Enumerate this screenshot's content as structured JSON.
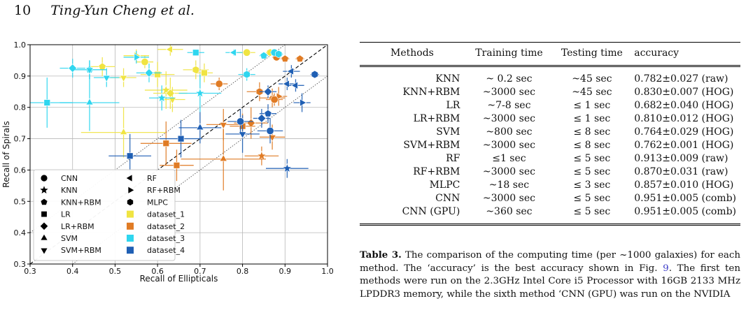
{
  "header": {
    "page_number": "10",
    "authors": "Ting-Yun Cheng et al."
  },
  "figure": {
    "chart_data": {
      "type": "scatter",
      "xlabel": "Recall of Ellipticals",
      "ylabel": "Recall of Spirals",
      "xlim": [
        0.3,
        1.0
      ],
      "ylim": [
        0.3,
        1.0
      ],
      "xticks": [
        "0.3",
        "0.4",
        "0.5",
        "0.6",
        "0.7",
        "0.8",
        "0.9",
        "1.0"
      ],
      "yticks": [
        "0.3",
        "0.4",
        "0.5",
        "0.6",
        "0.7",
        "0.8",
        "0.9",
        "1.0"
      ],
      "grid": true,
      "legend_position": "lower-left",
      "colors": {
        "dataset_1": "#f0e442",
        "dataset_2": "#e07b24",
        "dataset_3": "#2fd6ef",
        "dataset_4": "#1f5fb4"
      },
      "legend": {
        "methods": [
          {
            "label": "CNN",
            "marker": "circle"
          },
          {
            "label": "KNN",
            "marker": "star"
          },
          {
            "label": "KNN+RBM",
            "marker": "pentagon"
          },
          {
            "label": "LR",
            "marker": "square"
          },
          {
            "label": "LR+RBM",
            "marker": "diamond"
          },
          {
            "label": "SVM",
            "marker": "triangle-up"
          },
          {
            "label": "SVM+RBM",
            "marker": "triangle-down"
          },
          {
            "label": "RF",
            "marker": "triangle-left"
          },
          {
            "label": "RF+RBM",
            "marker": "triangle-right"
          },
          {
            "label": "MLPC",
            "marker": "hexagon"
          }
        ],
        "datasets": [
          "dataset_1",
          "dataset_2",
          "dataset_3",
          "dataset_4"
        ]
      },
      "points": [
        {
          "ds": "dataset_1",
          "m": "circle",
          "x": 0.81,
          "y": 0.975,
          "ex": 0.02,
          "ey": 0.01
        },
        {
          "ds": "dataset_1",
          "m": "star",
          "x": 0.62,
          "y": 0.855,
          "ex": 0.05,
          "ey": 0.06
        },
        {
          "ds": "dataset_1",
          "m": "pentagon",
          "x": 0.47,
          "y": 0.93,
          "ex": 0.03,
          "ey": 0.03
        },
        {
          "ds": "dataset_1",
          "m": "square",
          "x": 0.6,
          "y": 0.905,
          "ex": 0.04,
          "ey": 0.04
        },
        {
          "ds": "dataset_1",
          "m": "diamond",
          "x": 0.63,
          "y": 0.845,
          "ex": 0.04,
          "ey": 0.05
        },
        {
          "ds": "dataset_1",
          "m": "triangle-up",
          "x": 0.52,
          "y": 0.72,
          "ex": 0.1,
          "ey": 0.08
        },
        {
          "ds": "dataset_1",
          "m": "triangle-down",
          "x": 0.52,
          "y": 0.895,
          "ex": 0.03,
          "ey": 0.03
        },
        {
          "ds": "dataset_1",
          "m": "triangle-left",
          "x": 0.63,
          "y": 0.985,
          "ex": 0.03,
          "ey": 0.02
        },
        {
          "ds": "dataset_1",
          "m": "triangle-right",
          "x": 0.55,
          "y": 0.965,
          "ex": 0.03,
          "ey": 0.02
        },
        {
          "ds": "dataset_1",
          "m": "hexagon",
          "x": 0.69,
          "y": 0.92,
          "ex": 0.03,
          "ey": 0.03
        },
        {
          "ds": "dataset_1",
          "m": "circle",
          "x": 0.57,
          "y": 0.945,
          "ex": 0.02,
          "ey": 0.02
        },
        {
          "ds": "dataset_1",
          "m": "triangle-down",
          "x": 0.635,
          "y": 0.825,
          "ex": 0.03,
          "ey": 0.04
        },
        {
          "ds": "dataset_1",
          "m": "hexagon",
          "x": 0.865,
          "y": 0.975,
          "ex": 0.01,
          "ey": 0.01
        },
        {
          "ds": "dataset_1",
          "m": "square",
          "x": 0.71,
          "y": 0.91,
          "ex": 0.02,
          "ey": 0.03
        },
        {
          "ds": "dataset_2",
          "m": "circle",
          "x": 0.88,
          "y": 0.96,
          "ex": 0.01,
          "ey": 0.01
        },
        {
          "ds": "dataset_2",
          "m": "star",
          "x": 0.845,
          "y": 0.645,
          "ex": 0.04,
          "ey": 0.03
        },
        {
          "ds": "dataset_2",
          "m": "pentagon",
          "x": 0.9,
          "y": 0.955,
          "ex": 0.01,
          "ey": 0.01
        },
        {
          "ds": "dataset_2",
          "m": "square",
          "x": 0.62,
          "y": 0.685,
          "ex": 0.06,
          "ey": 0.07
        },
        {
          "ds": "dataset_2",
          "m": "diamond",
          "x": 0.82,
          "y": 0.75,
          "ex": 0.04,
          "ey": 0.05
        },
        {
          "ds": "dataset_2",
          "m": "triangle-up",
          "x": 0.755,
          "y": 0.635,
          "ex": 0.1,
          "ey": 0.1
        },
        {
          "ds": "dataset_2",
          "m": "triangle-down",
          "x": 0.755,
          "y": 0.745,
          "ex": 0.04,
          "ey": 0.05
        },
        {
          "ds": "dataset_2",
          "m": "triangle-left",
          "x": 0.87,
          "y": 0.83,
          "ex": 0.03,
          "ey": 0.03
        },
        {
          "ds": "dataset_2",
          "m": "triangle-right",
          "x": 0.885,
          "y": 0.835,
          "ex": 0.02,
          "ey": 0.03
        },
        {
          "ds": "dataset_2",
          "m": "hexagon",
          "x": 0.84,
          "y": 0.85,
          "ex": 0.03,
          "ey": 0.03
        },
        {
          "ds": "dataset_2",
          "m": "square",
          "x": 0.645,
          "y": 0.615,
          "ex": 0.04,
          "ey": 0.05
        },
        {
          "ds": "dataset_2",
          "m": "circle",
          "x": 0.875,
          "y": 0.825,
          "ex": 0.02,
          "ey": 0.02
        },
        {
          "ds": "dataset_2",
          "m": "pentagon",
          "x": 0.935,
          "y": 0.955,
          "ex": 0.01,
          "ey": 0.01
        },
        {
          "ds": "dataset_2",
          "m": "circle",
          "x": 0.745,
          "y": 0.875,
          "ex": 0.02,
          "ey": 0.02
        },
        {
          "ds": "dataset_2",
          "m": "triangle-down",
          "x": 0.87,
          "y": 0.705,
          "ex": 0.03,
          "ey": 0.04
        },
        {
          "ds": "dataset_2",
          "m": "square",
          "x": 0.8,
          "y": 0.74,
          "ex": 0.03,
          "ey": 0.04
        },
        {
          "ds": "dataset_3",
          "m": "circle",
          "x": 0.875,
          "y": 0.975,
          "ex": 0.01,
          "ey": 0.01
        },
        {
          "ds": "dataset_3",
          "m": "star",
          "x": 0.7,
          "y": 0.845,
          "ex": 0.05,
          "ey": 0.06
        },
        {
          "ds": "dataset_3",
          "m": "pentagon",
          "x": 0.44,
          "y": 0.92,
          "ex": 0.04,
          "ey": 0.03
        },
        {
          "ds": "dataset_3",
          "m": "square",
          "x": 0.34,
          "y": 0.815,
          "ex": 0.06,
          "ey": 0.08
        },
        {
          "ds": "dataset_3",
          "m": "diamond",
          "x": 0.4,
          "y": 0.925,
          "ex": 0.03,
          "ey": 0.03
        },
        {
          "ds": "dataset_3",
          "m": "triangle-up",
          "x": 0.44,
          "y": 0.815,
          "ex": 0.07,
          "ey": 0.09
        },
        {
          "ds": "dataset_3",
          "m": "triangle-down",
          "x": 0.44,
          "y": 0.92,
          "ex": 0.04,
          "ey": 0.03
        },
        {
          "ds": "dataset_3",
          "m": "triangle-left",
          "x": 0.78,
          "y": 0.975,
          "ex": 0.02,
          "ey": 0.01
        },
        {
          "ds": "dataset_3",
          "m": "triangle-right",
          "x": 0.55,
          "y": 0.96,
          "ex": 0.03,
          "ey": 0.02
        },
        {
          "ds": "dataset_3",
          "m": "hexagon",
          "x": 0.81,
          "y": 0.905,
          "ex": 0.02,
          "ey": 0.02
        },
        {
          "ds": "dataset_3",
          "m": "square",
          "x": 0.69,
          "y": 0.975,
          "ex": 0.02,
          "ey": 0.01
        },
        {
          "ds": "dataset_3",
          "m": "diamond",
          "x": 0.58,
          "y": 0.91,
          "ex": 0.03,
          "ey": 0.03
        },
        {
          "ds": "dataset_3",
          "m": "star",
          "x": 0.61,
          "y": 0.83,
          "ex": 0.03,
          "ey": 0.04
        },
        {
          "ds": "dataset_3",
          "m": "triangle-down",
          "x": 0.48,
          "y": 0.895,
          "ex": 0.03,
          "ey": 0.03
        },
        {
          "ds": "dataset_3",
          "m": "pentagon",
          "x": 0.85,
          "y": 0.965,
          "ex": 0.01,
          "ey": 0.01
        },
        {
          "ds": "dataset_3",
          "m": "hexagon",
          "x": 0.885,
          "y": 0.97,
          "ex": 0.01,
          "ey": 0.01
        },
        {
          "ds": "dataset_4",
          "m": "circle",
          "x": 0.865,
          "y": 0.725,
          "ex": 0.03,
          "ey": 0.04
        },
        {
          "ds": "dataset_4",
          "m": "star",
          "x": 0.905,
          "y": 0.605,
          "ex": 0.05,
          "ey": 0.03
        },
        {
          "ds": "dataset_4",
          "m": "pentagon",
          "x": 0.86,
          "y": 0.78,
          "ex": 0.02,
          "ey": 0.03
        },
        {
          "ds": "dataset_4",
          "m": "square",
          "x": 0.535,
          "y": 0.645,
          "ex": 0.05,
          "ey": 0.07
        },
        {
          "ds": "dataset_4",
          "m": "diamond",
          "x": 0.845,
          "y": 0.765,
          "ex": 0.02,
          "ey": 0.03
        },
        {
          "ds": "dataset_4",
          "m": "triangle-up",
          "x": 0.7,
          "y": 0.735,
          "ex": 0.05,
          "ey": 0.05
        },
        {
          "ds": "dataset_4",
          "m": "triangle-down",
          "x": 0.8,
          "y": 0.715,
          "ex": 0.04,
          "ey": 0.06
        },
        {
          "ds": "dataset_4",
          "m": "triangle-left",
          "x": 0.915,
          "y": 0.915,
          "ex": 0.02,
          "ey": 0.02
        },
        {
          "ds": "dataset_4",
          "m": "triangle-right",
          "x": 0.94,
          "y": 0.815,
          "ex": 0.02,
          "ey": 0.03
        },
        {
          "ds": "dataset_4",
          "m": "hexagon",
          "x": 0.97,
          "y": 0.905,
          "ex": 0.01,
          "ey": 0.01
        },
        {
          "ds": "dataset_4",
          "m": "square",
          "x": 0.655,
          "y": 0.7,
          "ex": 0.05,
          "ey": 0.06
        },
        {
          "ds": "dataset_4",
          "m": "circle",
          "x": 0.795,
          "y": 0.755,
          "ex": 0.03,
          "ey": 0.04
        },
        {
          "ds": "dataset_4",
          "m": "triangle-left",
          "x": 0.905,
          "y": 0.875,
          "ex": 0.02,
          "ey": 0.02
        },
        {
          "ds": "dataset_4",
          "m": "diamond",
          "x": 0.86,
          "y": 0.85,
          "ex": 0.02,
          "ey": 0.02
        },
        {
          "ds": "dataset_4",
          "m": "triangle-left",
          "x": 0.925,
          "y": 0.87,
          "ex": 0.02,
          "ey": 0.02
        }
      ]
    }
  },
  "table": {
    "headers": [
      "Methods",
      "Training time",
      "Testing time",
      "accuracy"
    ],
    "rows": [
      [
        "KNN",
        "~ 0.2 sec",
        "~45 sec",
        "0.782±0.027 (raw)"
      ],
      [
        "KNN+RBM",
        "~3000 sec",
        "~45 sec",
        "0.830±0.007 (HOG)"
      ],
      [
        "LR",
        "~7-8 sec",
        "≤ 1 sec",
        "0.682±0.040 (HOG)"
      ],
      [
        "LR+RBM",
        "~3000 sec",
        "≤ 1 sec",
        "0.810±0.012 (HOG)"
      ],
      [
        "SVM",
        "~800 sec",
        "≤ 8 sec",
        "0.764±0.029 (HOG)"
      ],
      [
        "SVM+RBM",
        "~3000 sec",
        "≤ 8 sec",
        "0.762±0.001 (HOG)"
      ],
      [
        "RF",
        "≤1 sec",
        "≤ 5 sec",
        "0.913±0.009 (raw)"
      ],
      [
        "RF+RBM",
        "~3000 sec",
        "≤ 5 sec",
        "0.870±0.031 (raw)"
      ],
      [
        "MLPC",
        "~18 sec",
        "≤ 3 sec",
        "0.857±0.010 (HOG)"
      ],
      [
        "CNN",
        "~3000 sec",
        "≤ 5 sec",
        "0.951±0.005 (comb)"
      ],
      [
        "CNN (GPU)",
        "~360 sec",
        "≤ 5 sec",
        "0.951±0.005 (comb)"
      ]
    ]
  },
  "caption": {
    "label": "Table 3.",
    "text_1": " The comparison of the computing time (per ~1000 galaxies) for each method. The ‘accuracy’ is the best accuracy shown in Fig. ",
    "fig_ref": "9",
    "text_2": ". The first ten methods were run on the 2.3GHz Intel Core i5 Processor with 16GB 2133 MHz LPDDR3 memory, while the sixth method ‘CNN (GPU) was run on the NVIDIA"
  }
}
